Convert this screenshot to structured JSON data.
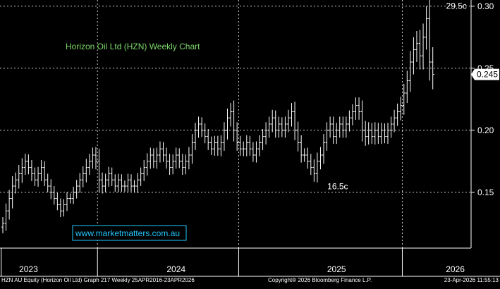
{
  "chart_data": {
    "type": "ohlc",
    "title": "Horizon Oil Ltd (HZN) Weekly Chart",
    "watermark": "www.marketmatters.com.au",
    "ylim": [
      0.105,
      0.305
    ],
    "y_ticks": [
      {
        "value": 0.15,
        "label": "0.15"
      },
      {
        "value": 0.2,
        "label": "0.20"
      },
      {
        "value": 0.25,
        "label": "0.25"
      },
      {
        "value": 0.3,
        "label": "0.30"
      }
    ],
    "x_labels": [
      {
        "label": "2023",
        "index": 8
      },
      {
        "label": "2024",
        "index": 54
      },
      {
        "label": "2025",
        "index": 104
      },
      {
        "label": "2026",
        "index": 141
      }
    ],
    "year_boundaries": [
      0,
      30,
      74,
      125
    ],
    "last_price": {
      "value": 0.245,
      "label": "0.245"
    },
    "annotations": [
      {
        "text": "29.5c",
        "value": 0.295,
        "index": 144
      },
      {
        "text": "16.5c",
        "value": 0.165,
        "index": 107
      }
    ],
    "footer": {
      "left": "HZN AU Equity (Horizon Oil Ltd) Graph 217 Weekly 25APR2016-23APR2026",
      "center": "Copyright® 2026 Bloomberg Finance L.P.",
      "right": "23-Apr-2026 11:55:13"
    },
    "colors": {
      "background": "#000000",
      "plot_background": "#000000",
      "bars": "#ffffff",
      "title": "#7cd96a",
      "watermark": "#22c8ff",
      "grid": "#ffffff",
      "axis_text": "#ffffff"
    },
    "closes": [
      0.125,
      0.135,
      0.145,
      0.155,
      0.16,
      0.165,
      0.17,
      0.175,
      0.17,
      0.165,
      0.16,
      0.165,
      0.17,
      0.16,
      0.155,
      0.15,
      0.145,
      0.14,
      0.135,
      0.14,
      0.145,
      0.145,
      0.15,
      0.155,
      0.16,
      0.165,
      0.17,
      0.175,
      0.18,
      0.175,
      0.16,
      0.155,
      0.16,
      0.165,
      0.16,
      0.155,
      0.16,
      0.155,
      0.155,
      0.16,
      0.155,
      0.155,
      0.16,
      0.165,
      0.17,
      0.175,
      0.18,
      0.175,
      0.18,
      0.185,
      0.18,
      0.175,
      0.17,
      0.175,
      0.18,
      0.175,
      0.17,
      0.175,
      0.18,
      0.19,
      0.2,
      0.205,
      0.2,
      0.195,
      0.19,
      0.185,
      0.19,
      0.185,
      0.19,
      0.2,
      0.21,
      0.215,
      0.2,
      0.19,
      0.185,
      0.185,
      0.19,
      0.185,
      0.18,
      0.185,
      0.19,
      0.195,
      0.2,
      0.205,
      0.21,
      0.2,
      0.205,
      0.2,
      0.205,
      0.21,
      0.215,
      0.2,
      0.19,
      0.18,
      0.18,
      0.175,
      0.17,
      0.165,
      0.175,
      0.18,
      0.19,
      0.2,
      0.205,
      0.195,
      0.2,
      0.205,
      0.2,
      0.205,
      0.21,
      0.215,
      0.22,
      0.215,
      0.2,
      0.195,
      0.2,
      0.195,
      0.2,
      0.195,
      0.2,
      0.195,
      0.2,
      0.205,
      0.21,
      0.215,
      0.22,
      0.23,
      0.24,
      0.255,
      0.265,
      0.27,
      0.26,
      0.275,
      0.29,
      0.255,
      0.245
    ],
    "volatility": [
      0.01,
      0.012,
      0.014,
      0.016,
      0.012,
      0.014,
      0.015,
      0.012,
      0.011,
      0.012,
      0.01,
      0.011,
      0.012,
      0.01,
      0.01,
      0.011,
      0.01,
      0.009,
      0.01,
      0.009,
      0.01,
      0.008,
      0.009,
      0.01,
      0.011,
      0.012,
      0.014,
      0.012,
      0.012,
      0.013,
      0.02,
      0.012,
      0.01,
      0.011,
      0.01,
      0.009,
      0.01,
      0.009,
      0.009,
      0.01,
      0.009,
      0.01,
      0.011,
      0.01,
      0.012,
      0.013,
      0.012,
      0.011,
      0.012,
      0.012,
      0.011,
      0.012,
      0.012,
      0.011,
      0.012,
      0.011,
      0.012,
      0.011,
      0.013,
      0.014,
      0.012,
      0.012,
      0.011,
      0.011,
      0.012,
      0.01,
      0.011,
      0.011,
      0.012,
      0.013,
      0.015,
      0.014,
      0.018,
      0.013,
      0.011,
      0.012,
      0.012,
      0.011,
      0.011,
      0.012,
      0.012,
      0.012,
      0.013,
      0.012,
      0.013,
      0.012,
      0.012,
      0.011,
      0.012,
      0.013,
      0.014,
      0.016,
      0.014,
      0.012,
      0.011,
      0.012,
      0.012,
      0.013,
      0.014,
      0.013,
      0.014,
      0.013,
      0.012,
      0.012,
      0.012,
      0.012,
      0.012,
      0.012,
      0.012,
      0.012,
      0.013,
      0.013,
      0.018,
      0.015,
      0.013,
      0.012,
      0.013,
      0.012,
      0.012,
      0.011,
      0.012,
      0.012,
      0.013,
      0.013,
      0.014,
      0.015,
      0.016,
      0.018,
      0.02,
      0.02,
      0.022,
      0.022,
      0.02,
      0.03,
      0.024
    ]
  }
}
